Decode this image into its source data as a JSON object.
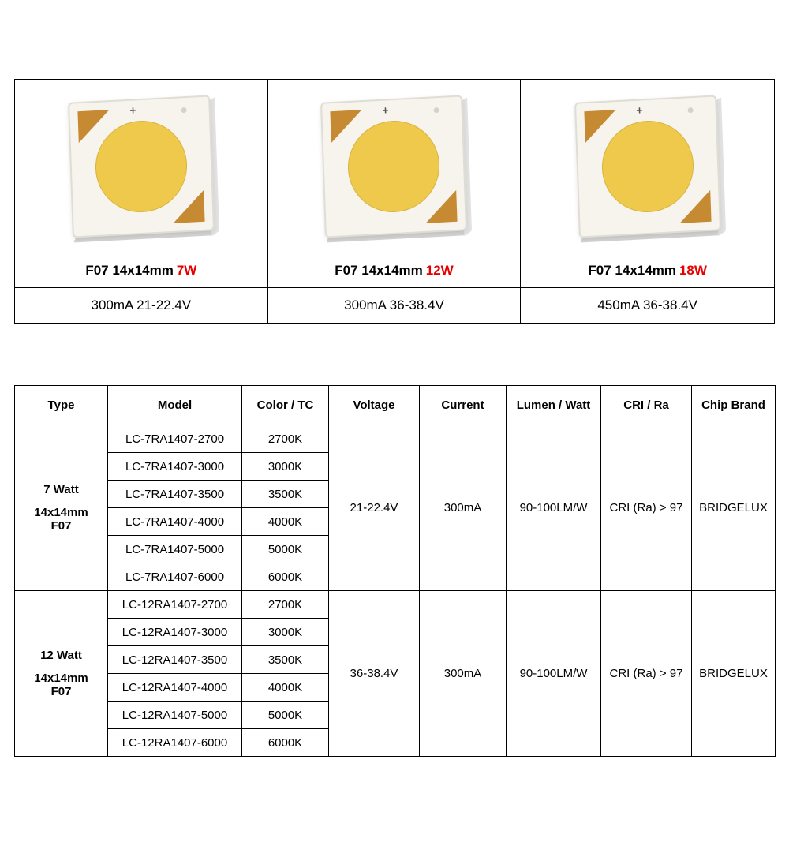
{
  "colors": {
    "accent_red": "#e60000",
    "chip_face": "#F7F4ED",
    "chip_circle": "#EFC94C",
    "chip_corner": "#C68A33",
    "border": "#000000"
  },
  "products": [
    {
      "title_prefix": "F07 14x14mm",
      "wattage": "7W",
      "spec": "300mA  21-22.4V"
    },
    {
      "title_prefix": "F07 14x14mm",
      "wattage": "12W",
      "spec": "300mA  36-38.4V"
    },
    {
      "title_prefix": "F07 14x14mm",
      "wattage": "18W",
      "spec": "450mA  36-38.4V"
    }
  ],
  "spec_table": {
    "headers": [
      "Type",
      "Model",
      "Color / TC",
      "Voltage",
      "Current",
      "Lumen / Watt",
      "CRI / Ra",
      "Chip Brand"
    ],
    "groups": [
      {
        "type_watt": "7 Watt",
        "type_dim": "14x14mm",
        "type_code": "F07",
        "voltage": "21-22.4V",
        "current": "300mA",
        "lumen": "90-100LM/W",
        "cri": "CRI (Ra) > 97",
        "brand": "BRIDGELUX",
        "rows": [
          {
            "model": "LC-7RA1407-2700",
            "color": "2700K"
          },
          {
            "model": "LC-7RA1407-3000",
            "color": "3000K"
          },
          {
            "model": "LC-7RA1407-3500",
            "color": "3500K"
          },
          {
            "model": "LC-7RA1407-4000",
            "color": "4000K"
          },
          {
            "model": "LC-7RA1407-5000",
            "color": "5000K"
          },
          {
            "model": "LC-7RA1407-6000",
            "color": "6000K"
          }
        ]
      },
      {
        "type_watt": "12 Watt",
        "type_dim": "14x14mm",
        "type_code": "F07",
        "voltage": "36-38.4V",
        "current": "300mA",
        "lumen": "90-100LM/W",
        "cri": "CRI (Ra) > 97",
        "brand": "BRIDGELUX",
        "rows": [
          {
            "model": "LC-12RA1407-2700",
            "color": "2700K"
          },
          {
            "model": "LC-12RA1407-3000",
            "color": "3000K"
          },
          {
            "model": "LC-12RA1407-3500",
            "color": "3500K"
          },
          {
            "model": "LC-12RA1407-4000",
            "color": "4000K"
          },
          {
            "model": "LC-12RA1407-5000",
            "color": "5000K"
          },
          {
            "model": "LC-12RA1407-6000",
            "color": "6000K"
          }
        ]
      }
    ]
  }
}
